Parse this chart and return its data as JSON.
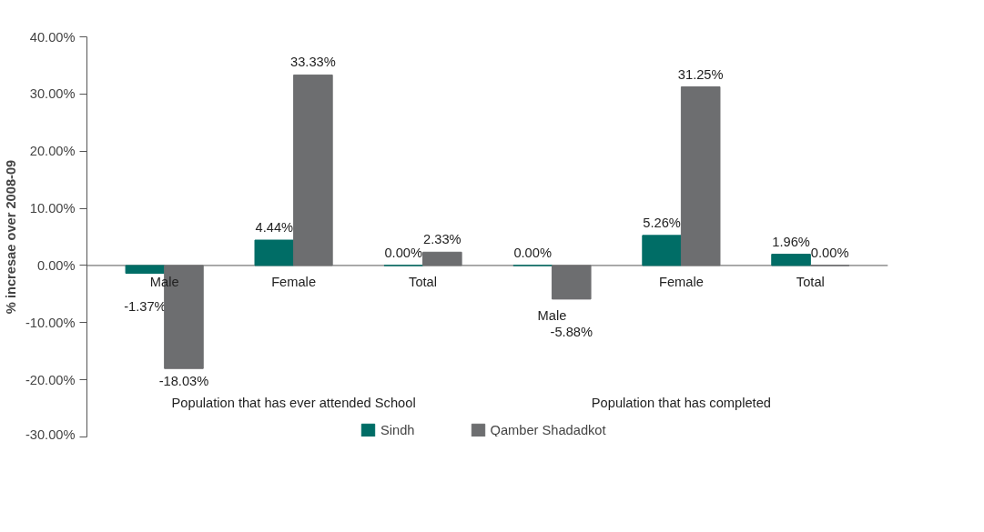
{
  "chart_data": {
    "type": "bar",
    "ylabel": "% incresae over 2008-09",
    "categories": [
      "Male",
      "Female",
      "Total",
      "Male",
      "Female",
      "Total"
    ],
    "series": [
      {
        "name": "Sindh",
        "color": "#006d66",
        "values": [
          -1.37,
          4.44,
          0,
          0,
          5.26,
          1.96
        ],
        "value_labels": [
          "-1.37%",
          "4.44%",
          "0.00%",
          "0.00%",
          "5.26%",
          "1.96%"
        ]
      },
      {
        "name": "Qamber Shadadkot",
        "color": "#6d6e70",
        "values": [
          -18.03,
          33.33,
          2.33,
          -5.88,
          31.25,
          0
        ],
        "value_labels": [
          "-18.03%",
          "33.33%",
          "2.33%",
          "-5.88%",
          "31.25%",
          "0.00%"
        ]
      }
    ],
    "ylim": [
      -30,
      40
    ],
    "yticks": [
      {
        "value": -30,
        "label": "-30.00%"
      },
      {
        "value": -20,
        "label": "-20.00%"
      },
      {
        "value": -10,
        "label": "-10.00%"
      },
      {
        "value": 0,
        "label": "0.00%"
      },
      {
        "value": 10,
        "label": "10.00%"
      },
      {
        "value": 20,
        "label": "20.00%"
      },
      {
        "value": 30,
        "label": "30.00%"
      },
      {
        "value": 40,
        "label": "40.00%"
      }
    ],
    "annotations": [
      "Population that has ever attended School",
      "Population that has completed"
    ],
    "grid": false,
    "legend": "bottom"
  }
}
